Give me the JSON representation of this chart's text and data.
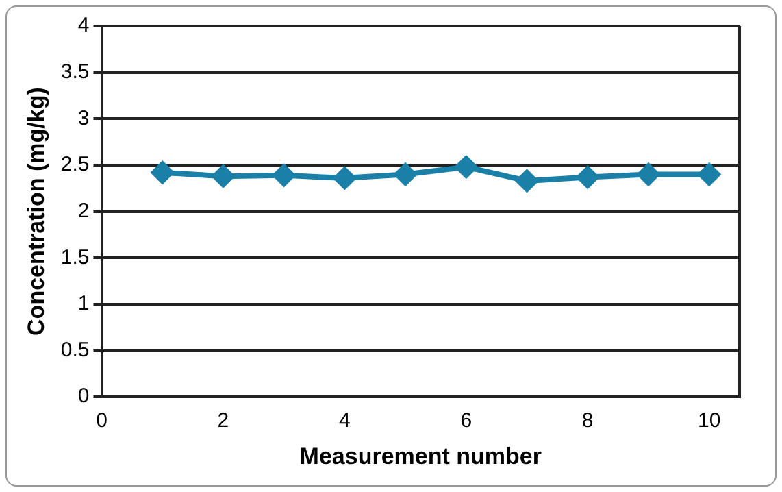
{
  "chart_data": {
    "type": "line",
    "xlabel": "Measurement number",
    "ylabel": "Concentration (mg/kg)",
    "x": [
      1,
      2,
      3,
      4,
      5,
      6,
      7,
      8,
      9,
      10
    ],
    "series": [
      {
        "color": "#1a80a8",
        "values": [
          2.42,
          2.38,
          2.39,
          2.36,
          2.4,
          2.48,
          2.33,
          2.37,
          2.4,
          2.4
        ]
      }
    ],
    "xlim": [
      0,
      10.5
    ],
    "xticks": [
      0,
      2,
      4,
      6,
      8,
      10
    ],
    "ylim": [
      0,
      4
    ],
    "yticks": [
      0,
      0.5,
      1,
      1.5,
      2,
      2.5,
      3,
      3.5,
      4
    ],
    "grid": "y",
    "marker": "diamond",
    "line_style": "solid",
    "legend": false
  }
}
